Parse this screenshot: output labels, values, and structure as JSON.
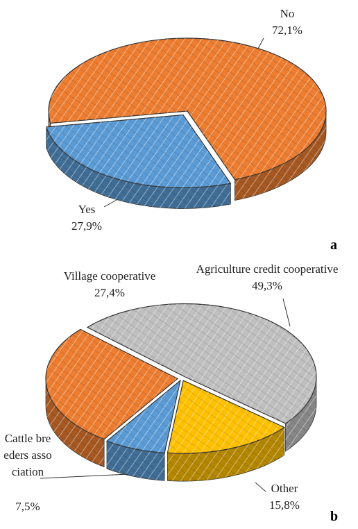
{
  "chart_data": [
    {
      "type": "pie",
      "panel": "a",
      "categories": [
        "No",
        "Yes"
      ],
      "values": [
        72.1,
        27.9
      ],
      "value_labels": [
        "72,1%",
        "27,9%"
      ],
      "colors": [
        "#ed7d31",
        "#5b9bd5"
      ]
    },
    {
      "type": "pie",
      "panel": "b",
      "categories": [
        "Agriculture credit cooperative",
        "Village cooperative",
        "Cattle breeders association",
        "Other"
      ],
      "values": [
        49.3,
        27.4,
        7.5,
        15.8
      ],
      "value_labels": [
        "49,3%",
        "27,4%",
        "7,5%",
        "15,8%"
      ],
      "colors": [
        "#bfbfbf",
        "#ed7d31",
        "#5b9bd5",
        "#ffc000"
      ]
    }
  ]
}
